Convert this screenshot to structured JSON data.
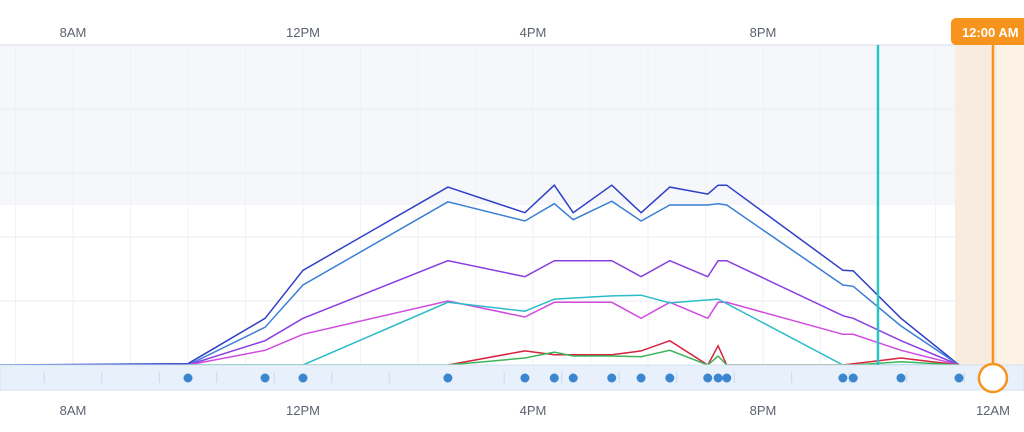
{
  "chart_data": {
    "type": "line",
    "xlabel": "",
    "ylabel": "",
    "xlim": [
      6.73,
      24.54
    ],
    "ylim": [
      0,
      5
    ],
    "grid": true,
    "x_ticks": [
      {
        "value": 8,
        "label": "8AM"
      },
      {
        "value": 12,
        "label": "12PM"
      },
      {
        "value": 16,
        "label": "4PM"
      },
      {
        "value": 20,
        "label": "8PM"
      }
    ],
    "bottom_ticks": [
      {
        "value": 8,
        "label": "8AM"
      },
      {
        "value": 12,
        "label": "12PM"
      },
      {
        "value": 16,
        "label": "4PM"
      },
      {
        "value": 20,
        "label": "8PM"
      },
      {
        "value": 24,
        "label": "12AM"
      }
    ],
    "series": [
      {
        "color": "#2f3fc7",
        "points": [
          [
            6.73,
            0
          ],
          [
            10.0,
            0.02
          ],
          [
            11.34,
            0.73
          ],
          [
            12.0,
            1.48
          ],
          [
            14.52,
            2.78
          ],
          [
            15.86,
            2.38
          ],
          [
            16.37,
            2.81
          ],
          [
            16.7,
            2.38
          ],
          [
            17.37,
            2.81
          ],
          [
            17.88,
            2.38
          ],
          [
            18.38,
            2.78
          ],
          [
            19.04,
            2.67
          ],
          [
            19.22,
            2.81
          ],
          [
            19.37,
            2.81
          ],
          [
            21.39,
            1.48
          ],
          [
            21.57,
            1.47
          ],
          [
            22.4,
            0.73
          ],
          [
            23.41,
            0
          ]
        ]
      },
      {
        "color": "#3a7fd5",
        "points": [
          [
            6.73,
            0
          ],
          [
            10.0,
            0
          ],
          [
            11.34,
            0.59
          ],
          [
            12.0,
            1.25
          ],
          [
            14.52,
            2.55
          ],
          [
            15.86,
            2.25
          ],
          [
            16.37,
            2.52
          ],
          [
            16.7,
            2.27
          ],
          [
            17.37,
            2.56
          ],
          [
            17.88,
            2.25
          ],
          [
            18.38,
            2.5
          ],
          [
            19.04,
            2.5
          ],
          [
            19.22,
            2.52
          ],
          [
            19.37,
            2.5
          ],
          [
            21.39,
            1.25
          ],
          [
            21.57,
            1.23
          ],
          [
            22.4,
            0.61
          ],
          [
            23.41,
            0
          ]
        ]
      },
      {
        "color": "#8a3de0",
        "points": [
          [
            10.0,
            0
          ],
          [
            11.34,
            0.38
          ],
          [
            12.0,
            0.73
          ],
          [
            14.52,
            1.63
          ],
          [
            15.86,
            1.38
          ],
          [
            16.37,
            1.63
          ],
          [
            16.7,
            1.63
          ],
          [
            17.37,
            1.63
          ],
          [
            17.88,
            1.38
          ],
          [
            18.38,
            1.63
          ],
          [
            19.04,
            1.38
          ],
          [
            19.22,
            1.63
          ],
          [
            19.37,
            1.63
          ],
          [
            21.39,
            0.77
          ],
          [
            21.57,
            0.73
          ],
          [
            22.4,
            0.38
          ],
          [
            23.41,
            0
          ]
        ]
      },
      {
        "color": "#d14ae0",
        "points": [
          [
            10.0,
            0
          ],
          [
            11.34,
            0.23
          ],
          [
            12.0,
            0.48
          ],
          [
            14.52,
            1.0
          ],
          [
            15.86,
            0.75
          ],
          [
            16.37,
            0.98
          ],
          [
            16.7,
            0.98
          ],
          [
            17.37,
            0.98
          ],
          [
            17.88,
            0.73
          ],
          [
            18.38,
            0.98
          ],
          [
            19.04,
            0.73
          ],
          [
            19.22,
            0.98
          ],
          [
            19.37,
            0.98
          ],
          [
            21.39,
            0.48
          ],
          [
            21.57,
            0.48
          ],
          [
            22.4,
            0.23
          ],
          [
            23.41,
            0
          ]
        ]
      },
      {
        "color": "#2bbcc9",
        "points": [
          [
            10.0,
            0
          ],
          [
            12.0,
            0
          ],
          [
            14.52,
            0.98
          ],
          [
            15.86,
            0.84
          ],
          [
            16.37,
            1.03
          ],
          [
            17.37,
            1.08
          ],
          [
            17.88,
            1.09
          ],
          [
            18.38,
            0.97
          ],
          [
            19.22,
            1.03
          ],
          [
            21.39,
            0
          ],
          [
            23.41,
            0
          ]
        ]
      },
      {
        "color": "#d6233f",
        "points": [
          [
            14.52,
            0
          ],
          [
            15.86,
            0.22
          ],
          [
            16.37,
            0.16
          ],
          [
            16.7,
            0.16
          ],
          [
            17.37,
            0.16
          ],
          [
            17.88,
            0.22
          ],
          [
            18.38,
            0.38
          ],
          [
            19.04,
            0
          ],
          [
            19.22,
            0.3
          ],
          [
            19.37,
            0
          ],
          [
            21.39,
            0
          ],
          [
            22.4,
            0.11
          ],
          [
            23.41,
            0
          ]
        ]
      },
      {
        "color": "#3cb55a",
        "points": [
          [
            10.0,
            0
          ],
          [
            14.52,
            0
          ],
          [
            15.86,
            0.11
          ],
          [
            16.37,
            0.2
          ],
          [
            16.7,
            0.14
          ],
          [
            17.37,
            0.14
          ],
          [
            17.88,
            0.13
          ],
          [
            18.38,
            0.23
          ],
          [
            19.04,
            0
          ],
          [
            19.22,
            0.14
          ],
          [
            19.37,
            0
          ],
          [
            21.57,
            0
          ],
          [
            22.4,
            0.05
          ],
          [
            23.41,
            0
          ]
        ]
      }
    ],
    "event_markers": [
      10.0,
      11.34,
      12.0,
      14.52,
      15.86,
      16.37,
      16.7,
      17.37,
      17.88,
      18.38,
      19.04,
      19.22,
      19.37,
      21.39,
      21.57,
      22.4,
      23.41
    ],
    "event_color": "#3a87cf",
    "reference_line": {
      "x": 22.0,
      "color": "#2bc4c4"
    },
    "cursor": {
      "x": 24.0,
      "label": "12:00 AM",
      "color": "#f7941d"
    }
  }
}
